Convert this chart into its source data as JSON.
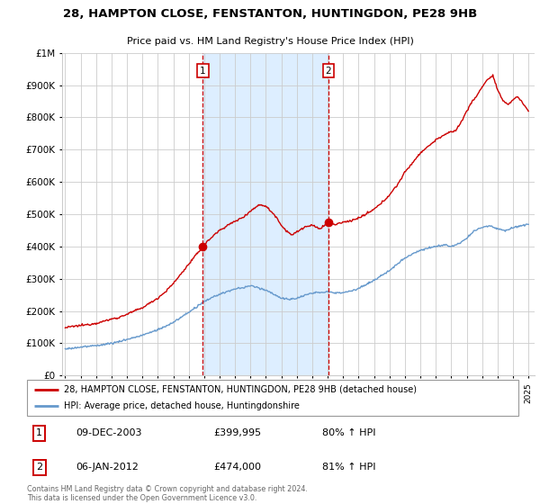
{
  "title": "28, HAMPTON CLOSE, FENSTANTON, HUNTINGDON, PE28 9HB",
  "subtitle": "Price paid vs. HM Land Registry's House Price Index (HPI)",
  "legend_line1": "28, HAMPTON CLOSE, FENSTANTON, HUNTINGDON, PE28 9HB (detached house)",
  "legend_line2": "HPI: Average price, detached house, Huntingdonshire",
  "footer": "Contains HM Land Registry data © Crown copyright and database right 2024.\nThis data is licensed under the Open Government Licence v3.0.",
  "sale1_date": "09-DEC-2003",
  "sale1_price": 399995,
  "sale1_price_str": "£399,995",
  "sale1_pct": "80% ↑ HPI",
  "sale2_date": "06-JAN-2012",
  "sale2_price": 474000,
  "sale2_price_str": "£474,000",
  "sale2_pct": "81% ↑ HPI",
  "red_color": "#cc0000",
  "blue_color": "#6699cc",
  "shade_color": "#ddeeff",
  "grid_color": "#cccccc",
  "sale1_x": 2003.92,
  "sale2_x": 2012.04,
  "xlim_start": 1994.8,
  "xlim_end": 2025.4,
  "ylim_max": 1000000,
  "red_waypoints_x": [
    1995.0,
    1995.5,
    1996.0,
    1996.5,
    1997.0,
    1997.5,
    1998.0,
    1998.5,
    1999.0,
    1999.5,
    2000.0,
    2000.5,
    2001.0,
    2001.5,
    2002.0,
    2002.5,
    2003.0,
    2003.5,
    2003.92,
    2004.3,
    2004.7,
    2005.0,
    2005.5,
    2006.0,
    2006.5,
    2007.0,
    2007.3,
    2007.6,
    2008.0,
    2008.3,
    2008.7,
    2009.0,
    2009.3,
    2009.7,
    2010.0,
    2010.5,
    2011.0,
    2011.5,
    2012.04,
    2012.5,
    2013.0,
    2013.5,
    2014.0,
    2014.5,
    2015.0,
    2015.5,
    2016.0,
    2016.5,
    2017.0,
    2017.5,
    2018.0,
    2018.5,
    2019.0,
    2019.5,
    2020.0,
    2020.3,
    2020.7,
    2021.0,
    2021.3,
    2021.7,
    2022.0,
    2022.3,
    2022.7,
    2023.0,
    2023.3,
    2023.7,
    2024.0,
    2024.3,
    2024.7,
    2025.0
  ],
  "red_waypoints_y": [
    148000,
    152000,
    155000,
    158000,
    162000,
    168000,
    175000,
    180000,
    190000,
    200000,
    210000,
    225000,
    240000,
    260000,
    285000,
    315000,
    345000,
    375000,
    399995,
    420000,
    438000,
    450000,
    465000,
    478000,
    490000,
    510000,
    520000,
    530000,
    525000,
    510000,
    490000,
    465000,
    450000,
    435000,
    445000,
    460000,
    465000,
    455000,
    474000,
    468000,
    475000,
    480000,
    488000,
    500000,
    515000,
    535000,
    560000,
    590000,
    630000,
    660000,
    690000,
    710000,
    730000,
    745000,
    755000,
    760000,
    790000,
    820000,
    845000,
    870000,
    895000,
    915000,
    930000,
    885000,
    855000,
    840000,
    855000,
    865000,
    840000,
    820000
  ],
  "blue_waypoints_x": [
    1995.0,
    1995.5,
    1996.0,
    1996.5,
    1997.0,
    1997.5,
    1998.0,
    1998.5,
    1999.0,
    1999.5,
    2000.0,
    2000.5,
    2001.0,
    2001.5,
    2002.0,
    2002.5,
    2003.0,
    2003.5,
    2004.0,
    2004.5,
    2005.0,
    2005.5,
    2006.0,
    2006.5,
    2007.0,
    2007.5,
    2008.0,
    2008.5,
    2009.0,
    2009.5,
    2010.0,
    2010.5,
    2011.0,
    2011.5,
    2012.0,
    2012.5,
    2013.0,
    2013.5,
    2014.0,
    2014.5,
    2015.0,
    2015.5,
    2016.0,
    2016.5,
    2017.0,
    2017.5,
    2018.0,
    2018.5,
    2019.0,
    2019.5,
    2020.0,
    2020.5,
    2021.0,
    2021.5,
    2022.0,
    2022.5,
    2023.0,
    2023.5,
    2024.0,
    2024.5,
    2025.0
  ],
  "blue_waypoints_y": [
    82000,
    85000,
    88000,
    90000,
    93000,
    96000,
    100000,
    105000,
    112000,
    118000,
    125000,
    133000,
    142000,
    152000,
    165000,
    180000,
    196000,
    212000,
    228000,
    242000,
    252000,
    260000,
    268000,
    272000,
    278000,
    272000,
    265000,
    252000,
    240000,
    235000,
    240000,
    248000,
    255000,
    258000,
    260000,
    255000,
    258000,
    262000,
    270000,
    282000,
    295000,
    310000,
    325000,
    345000,
    365000,
    378000,
    388000,
    395000,
    400000,
    405000,
    400000,
    408000,
    425000,
    448000,
    460000,
    465000,
    455000,
    450000,
    458000,
    465000,
    468000
  ]
}
